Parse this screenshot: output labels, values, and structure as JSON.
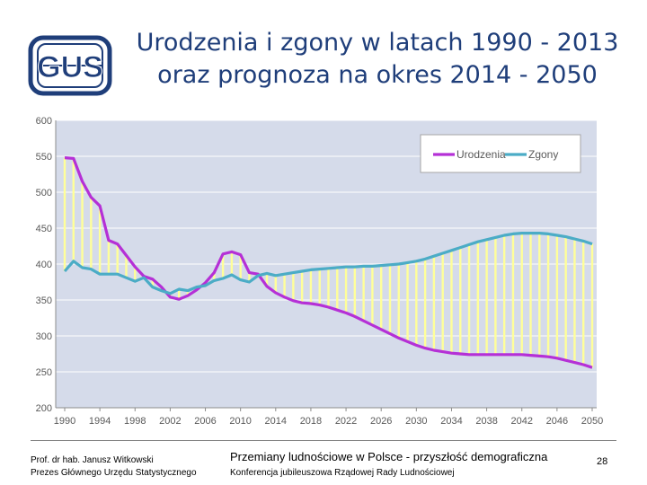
{
  "logo": {
    "text": "GUS",
    "color": "#1f3e7a"
  },
  "header": {
    "title_line1": "Urodzenia i zgony w latach 1990 - 2013",
    "title_line2": "oraz prognoza na okres 2014 - 2050"
  },
  "chart_data": {
    "type": "line",
    "title": "Urodzenia i zgony w latach 1990 - 2013 oraz prognoza na okres 2014 - 2050",
    "xlabel": "",
    "ylabel": "",
    "ylim": [
      200,
      600
    ],
    "yticks": [
      200,
      250,
      300,
      350,
      400,
      450,
      500,
      550,
      600
    ],
    "xlim": [
      1990,
      2050
    ],
    "xticks": [
      1990,
      1994,
      1998,
      2002,
      2006,
      2010,
      2014,
      2018,
      2022,
      2026,
      2030,
      2034,
      2038,
      2042,
      2046,
      2050
    ],
    "grid": true,
    "legend_position": "top-right",
    "background_color": "#d5dbea",
    "colors": {
      "births": "#b530d6",
      "deaths": "#4bacc6",
      "fill": "#ffff99",
      "grid": "#ffffff"
    },
    "x": [
      1990,
      1991,
      1992,
      1993,
      1994,
      1995,
      1996,
      1997,
      1998,
      1999,
      2000,
      2001,
      2002,
      2003,
      2004,
      2005,
      2006,
      2007,
      2008,
      2009,
      2010,
      2011,
      2012,
      2013,
      2014,
      2015,
      2016,
      2017,
      2018,
      2019,
      2020,
      2021,
      2022,
      2023,
      2024,
      2025,
      2026,
      2027,
      2028,
      2029,
      2030,
      2031,
      2032,
      2033,
      2034,
      2035,
      2036,
      2037,
      2038,
      2039,
      2040,
      2041,
      2042,
      2043,
      2044,
      2045,
      2046,
      2047,
      2048,
      2049,
      2050
    ],
    "series": [
      {
        "name": "Urodzenia",
        "color": "#b530d6",
        "values": [
          548,
          547,
          515,
          493,
          481,
          433,
          428,
          412,
          396,
          383,
          379,
          368,
          354,
          351,
          356,
          364,
          374,
          388,
          414,
          417,
          413,
          388,
          386,
          369,
          360,
          354,
          349,
          346,
          345,
          343,
          340,
          336,
          332,
          327,
          321,
          315,
          309,
          303,
          297,
          292,
          287,
          283,
          280,
          278,
          276,
          275,
          274,
          274,
          274,
          274,
          274,
          274,
          274,
          273,
          272,
          271,
          269,
          266,
          263,
          260,
          256
        ]
      },
      {
        "name": "Zgony",
        "color": "#4bacc6",
        "values": [
          390,
          404,
          395,
          393,
          386,
          386,
          386,
          381,
          376,
          381,
          368,
          363,
          359,
          365,
          363,
          368,
          370,
          377,
          380,
          385,
          378,
          375,
          384,
          387,
          384,
          386,
          388,
          390,
          392,
          393,
          394,
          395,
          396,
          396,
          397,
          397,
          398,
          399,
          400,
          402,
          404,
          407,
          411,
          415,
          419,
          423,
          427,
          431,
          434,
          437,
          440,
          442,
          443,
          443,
          443,
          442,
          440,
          438,
          435,
          432,
          428
        ]
      }
    ]
  },
  "footer": {
    "author_line1": "Prof. dr hab. Janusz Witkowski",
    "author_line2": "Prezes Głównego Urzędu Statystycznego",
    "presentation_title": "Przemiany ludnościowe w Polsce -  przyszłość demograficzna",
    "conference": "Konferencja jubileuszowa Rządowej Rady Ludnościowej",
    "page_number": "28"
  }
}
